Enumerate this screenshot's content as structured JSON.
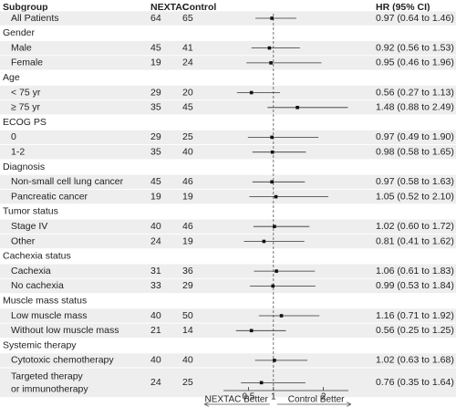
{
  "chart_data": {
    "type": "forest",
    "columns": [
      "Subgroup",
      "NEXTAC",
      "Control",
      "HR (95% CI)"
    ],
    "rows": [
      {
        "label": "All Patients",
        "nextac": 64,
        "control": 65,
        "hr": 0.97,
        "lo": 0.64,
        "hi": 1.46,
        "hr_label": "0.97 (0.64 to 1.46)"
      },
      {
        "label": "Gender"
      },
      {
        "label": "Male",
        "nextac": 45,
        "control": 41,
        "hr": 0.92,
        "lo": 0.56,
        "hi": 1.53,
        "hr_label": "0.92 (0.56 to 1.53)"
      },
      {
        "label": "Female",
        "nextac": 19,
        "control": 24,
        "hr": 0.95,
        "lo": 0.46,
        "hi": 1.96,
        "hr_label": "0.95 (0.46 to 1.96)"
      },
      {
        "label": "Age"
      },
      {
        "label": "< 75 yr",
        "nextac": 29,
        "control": 20,
        "hr": 0.56,
        "lo": 0.27,
        "hi": 1.13,
        "hr_label": "0.56 (0.27 to 1.13)"
      },
      {
        "label": "≥ 75 yr",
        "nextac": 35,
        "control": 45,
        "hr": 1.48,
        "lo": 0.88,
        "hi": 2.49,
        "hr_label": "1.48 (0.88 to 2.49)"
      },
      {
        "label": "ECOG PS"
      },
      {
        "label": "0",
        "nextac": 29,
        "control": 25,
        "hr": 0.97,
        "lo": 0.49,
        "hi": 1.9,
        "hr_label": "0.97 (0.49 to 1.90)"
      },
      {
        "label": "1-2",
        "nextac": 35,
        "control": 40,
        "hr": 0.98,
        "lo": 0.58,
        "hi": 1.65,
        "hr_label": "0.98 (0.58 to 1.65)"
      },
      {
        "label": "Diagnosis"
      },
      {
        "label": "Non-small cell lung cancer",
        "nextac": 45,
        "control": 46,
        "hr": 0.97,
        "lo": 0.58,
        "hi": 1.63,
        "hr_label": "0.97 (0.58 to 1.63)"
      },
      {
        "label": "Pancreatic cancer",
        "nextac": 19,
        "control": 19,
        "hr": 1.05,
        "lo": 0.52,
        "hi": 2.1,
        "hr_label": "1.05 (0.52 to 2.10)"
      },
      {
        "label": "Tumor status"
      },
      {
        "label": "Stage IV",
        "nextac": 40,
        "control": 46,
        "hr": 1.02,
        "lo": 0.6,
        "hi": 1.72,
        "hr_label": "1.02 (0.60 to 1.72)"
      },
      {
        "label": "Other",
        "nextac": 24,
        "control": 19,
        "hr": 0.81,
        "lo": 0.41,
        "hi": 1.62,
        "hr_label": "0.81 (0.41 to 1.62)"
      },
      {
        "label": "Cachexia status"
      },
      {
        "label": "Cachexia",
        "nextac": 31,
        "control": 36,
        "hr": 1.06,
        "lo": 0.61,
        "hi": 1.83,
        "hr_label": "1.06 (0.61 to 1.83)"
      },
      {
        "label": "No cachexia",
        "nextac": 33,
        "control": 29,
        "hr": 0.99,
        "lo": 0.53,
        "hi": 1.84,
        "hr_label": "0.99 (0.53 to 1.84)"
      },
      {
        "label": "Muscle mass status"
      },
      {
        "label": "Low muscle mass",
        "nextac": 40,
        "control": 50,
        "hr": 1.16,
        "lo": 0.71,
        "hi": 1.92,
        "hr_label": "1.16 (0.71 to 1.92)"
      },
      {
        "label": "Without low muscle mass",
        "nextac": 21,
        "control": 14,
        "hr": 0.56,
        "lo": 0.25,
        "hi": 1.25,
        "hr_label": "0.56 (0.25 to 1.25)"
      },
      {
        "label": "Systemic therapy"
      },
      {
        "label": "Cytotoxic chemotherapy",
        "nextac": 40,
        "control": 40,
        "hr": 1.02,
        "lo": 0.63,
        "hi": 1.68,
        "hr_label": "1.02 (0.63 to 1.68)"
      },
      {
        "label": [
          "Targeted therapy",
          "or immunotherapy"
        ],
        "nextac": 24,
        "control": 25,
        "hr": 0.76,
        "lo": 0.35,
        "hi": 1.64,
        "hr_label": "0.76 (0.35 to 1.64)"
      }
    ],
    "xlim": [
      0,
      2.5
    ],
    "xticks": [
      0.5,
      1,
      2
    ],
    "ref_line": 1,
    "left_label": "NEXTAC Better",
    "right_label": "Control Better"
  }
}
